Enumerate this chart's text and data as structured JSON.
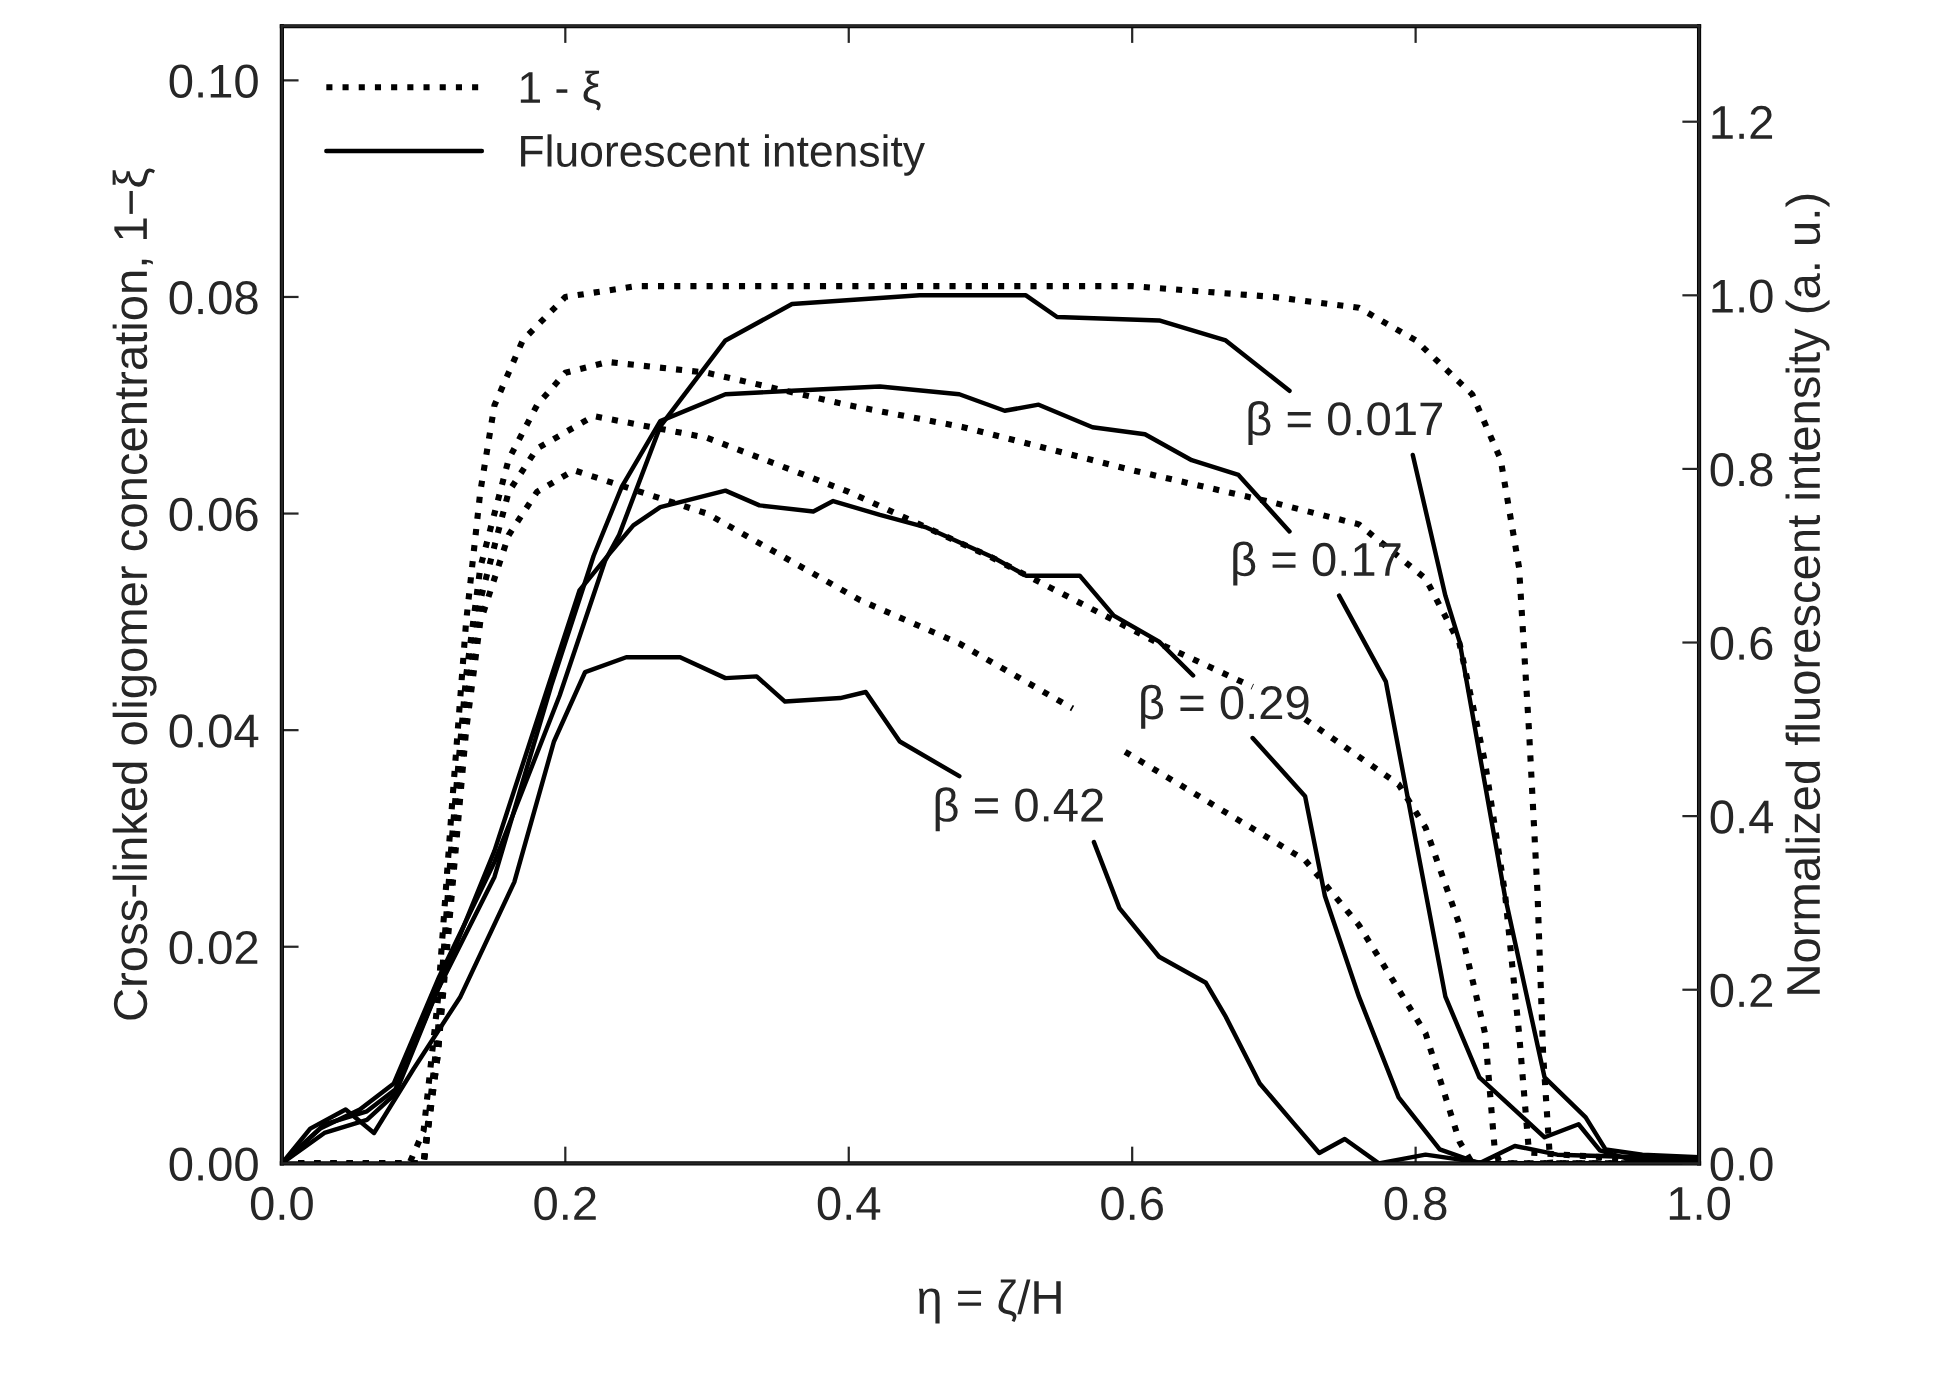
{
  "chart_data": {
    "type": "line",
    "xlabel": "η = ζ/H",
    "ylabel": "Cross-linked oligomer concentration, 1−ξ",
    "y2label": "Normalized fluorescent intensity (a. u.)",
    "xlim": [
      0,
      1.0
    ],
    "ylim": [
      0,
      0.105
    ],
    "y2lim": [
      0,
      1.31
    ],
    "xticks": [
      {
        "value": 0,
        "label": "0.0"
      },
      {
        "value": 0.2,
        "label": "0.2"
      },
      {
        "value": 0.4,
        "label": "0.4"
      },
      {
        "value": 0.6,
        "label": "0.6"
      },
      {
        "value": 0.8,
        "label": "0.8"
      },
      {
        "value": 1.0,
        "label": "1.0"
      }
    ],
    "yticks": [
      {
        "value": 0,
        "label": "0.00"
      },
      {
        "value": 0.02,
        "label": "0.02"
      },
      {
        "value": 0.04,
        "label": "0.04"
      },
      {
        "value": 0.06,
        "label": "0.06"
      },
      {
        "value": 0.08,
        "label": "0.08"
      },
      {
        "value": 0.1,
        "label": "0.10"
      }
    ],
    "y2ticks": [
      {
        "value": 0,
        "label": "0.0"
      },
      {
        "value": 0.2,
        "label": "0.2"
      },
      {
        "value": 0.4,
        "label": "0.4"
      },
      {
        "value": 0.6,
        "label": "0.6"
      },
      {
        "value": 0.8,
        "label": "0.8"
      },
      {
        "value": 1.0,
        "label": "1.0"
      },
      {
        "value": 1.2,
        "label": "1.2"
      }
    ],
    "grid": false,
    "legend": "top left",
    "marker": "none",
    "series": [
      {
        "name": "1 - ξ",
        "color": "#000000",
        "line_style": "dotted",
        "x": [
          0,
          0.09,
          0.1,
          0.11,
          0.12,
          0.13,
          0.14,
          0.15,
          0.17,
          0.2,
          0.25,
          0.4,
          0.6,
          0.7,
          0.76,
          0.8,
          0.84,
          0.86,
          0.873,
          0.88,
          0.886,
          0.89,
          0.895,
          1.0
        ],
        "values": [
          0,
          0,
          0.003,
          0.015,
          0.033,
          0.05,
          0.062,
          0.07,
          0.076,
          0.08,
          0.081,
          0.081,
          0.081,
          0.08,
          0.079,
          0.076,
          0.071,
          0.065,
          0.055,
          0.04,
          0.025,
          0.01,
          0,
          0
        ]
      },
      {
        "color": "#000000",
        "line_style": "dotted",
        "x": [
          0,
          0.1,
          0.11,
          0.12,
          0.13,
          0.14,
          0.16,
          0.18,
          0.2,
          0.23,
          0.3,
          0.4,
          0.48,
          0.6,
          0.7,
          0.76,
          0.807,
          0.831,
          0.849,
          0.863,
          0.873,
          0.88,
          1.0
        ],
        "values": [
          0,
          0,
          0.012,
          0.03,
          0.045,
          0.055,
          0.065,
          0.07,
          0.073,
          0.074,
          0.073,
          0.07,
          0.068,
          0.064,
          0.061,
          0.059,
          0.054,
          0.048,
          0.037,
          0.025,
          0.012,
          0.001,
          0
        ]
      },
      {
        "color": "#000000",
        "line_style": "dotted",
        "x": [
          0,
          0.1,
          0.11,
          0.12,
          0.13,
          0.14,
          0.16,
          0.18,
          0.22,
          0.3,
          0.4,
          0.5,
          0.619,
          0.685,
          0.7,
          0.722,
          0.788,
          0.807,
          0.831,
          0.849,
          0.856,
          0.86,
          1.0
        ],
        "values": [
          0,
          0,
          0.01,
          0.027,
          0.042,
          0.052,
          0.062,
          0.066,
          0.069,
          0.067,
          0.062,
          0.056,
          0.048,
          0.044,
          null,
          0.041,
          0.035,
          0.031,
          0.022,
          0.012,
          0.001,
          0,
          0
        ]
      },
      {
        "color": "#000000",
        "line_style": "dotted",
        "x": [
          0,
          0.1,
          0.11,
          0.12,
          0.13,
          0.14,
          0.16,
          0.18,
          0.206,
          0.3,
          0.408,
          0.478,
          0.558,
          0.575,
          0.595,
          0.722,
          0.76,
          0.807,
          0.831,
          0.84,
          1.0
        ],
        "values": [
          0,
          0,
          0.01,
          0.025,
          0.04,
          0.05,
          0.058,
          0.062,
          0.064,
          0.06,
          0.052,
          0.048,
          0.042,
          null,
          0.038,
          0.028,
          0.022,
          0.012,
          0.002,
          0,
          0
        ]
      },
      {
        "name": "Fluorescent intensity",
        "color": "#000000",
        "line_style": "solid",
        "axis": "y2",
        "x": [
          0,
          0.027,
          0.055,
          0.079,
          0.111,
          0.15,
          0.196,
          0.228,
          0.238,
          0.267,
          0.313,
          0.36,
          0.45,
          0.525,
          0.547,
          0.619,
          0.666,
          0.711,
          0.75,
          0.798,
          0.821,
          0.831,
          0.863,
          0.891,
          0.92,
          0.934,
          0.96,
          1.0
        ],
        "values": [
          0,
          0.04,
          0.062,
          0.092,
          0.215,
          0.347,
          0.539,
          0.694,
          0.724,
          0.849,
          0.948,
          0.99,
          1.0,
          1.0,
          0.975,
          0.971,
          0.948,
          0.89,
          null,
          0.816,
          0.654,
          0.601,
          0.308,
          0.099,
          0.053,
          0.016,
          0.01,
          0.007
        ]
      },
      {
        "color": "#000000",
        "line_style": "solid",
        "axis": "y2",
        "x": [
          0,
          0.03,
          0.06,
          0.08,
          0.11,
          0.15,
          0.19,
          0.22,
          0.24,
          0.258,
          0.267,
          0.313,
          0.36,
          0.422,
          0.478,
          0.51,
          0.534,
          0.572,
          0.609,
          0.642,
          0.675,
          0.711,
          0.73,
          0.746,
          0.779,
          0.803,
          0.821,
          0.845,
          0.891,
          0.915,
          0.93,
          0.95,
          1.0
        ],
        "values": [
          0,
          0.045,
          0.06,
          0.085,
          0.2,
          0.33,
          0.55,
          0.7,
          0.78,
          0.83,
          0.855,
          0.886,
          0.89,
          0.895,
          0.886,
          0.867,
          0.874,
          0.848,
          0.84,
          0.81,
          0.793,
          0.728,
          null,
          0.654,
          0.555,
          0.347,
          0.192,
          0.099,
          0.03,
          0.045,
          0.015,
          0.005,
          0.005
        ]
      },
      {
        "color": "#000000",
        "line_style": "solid",
        "axis": "y2",
        "x": [
          0,
          0.03,
          0.06,
          0.08,
          0.11,
          0.15,
          0.19,
          0.21,
          0.23,
          0.248,
          0.267,
          0.313,
          0.337,
          0.375,
          0.389,
          0.422,
          0.454,
          0.502,
          0.525,
          0.563,
          0.587,
          0.619,
          0.643,
          0.665,
          0.685,
          0.722,
          0.736,
          0.76,
          0.788,
          0.817,
          0.845,
          0.87,
          0.9,
          1.0
        ],
        "values": [
          0,
          0.035,
          0.05,
          0.08,
          0.2,
          0.36,
          0.56,
          0.66,
          0.7,
          0.735,
          0.756,
          0.775,
          0.758,
          0.751,
          0.763,
          0.747,
          0.733,
          0.698,
          0.677,
          0.677,
          0.631,
          0.601,
          0.562,
          null,
          0.49,
          0.423,
          0.308,
          0.192,
          0.076,
          0.016,
          0,
          0.02,
          0.01,
          0.005
        ]
      },
      {
        "color": "#000000",
        "line_style": "solid",
        "axis": "y2",
        "x": [
          0,
          0.02,
          0.045,
          0.065,
          0.093,
          0.126,
          0.164,
          0.192,
          0.214,
          0.243,
          0.281,
          0.313,
          0.335,
          0.355,
          0.394,
          0.412,
          0.436,
          0.478,
          0.52,
          0.573,
          0.591,
          0.619,
          0.652,
          0.666,
          0.69,
          0.714,
          0.732,
          0.75,
          0.774,
          0.807,
          0.85,
          1.0
        ],
        "values": [
          0,
          0.04,
          0.062,
          0.035,
          0.109,
          0.192,
          0.324,
          0.486,
          0.566,
          0.583,
          0.583,
          0.559,
          0.561,
          0.532,
          0.536,
          0.543,
          0.486,
          0.446,
          null,
          0.37,
          0.294,
          0.238,
          0.208,
          0.169,
          0.092,
          0.046,
          0.012,
          0.028,
          0,
          0.01,
          0,
          0
        ]
      }
    ],
    "annotations": [
      "β = 0.017",
      "β = 0.17",
      "β = 0.29",
      "β = 0.42"
    ]
  }
}
